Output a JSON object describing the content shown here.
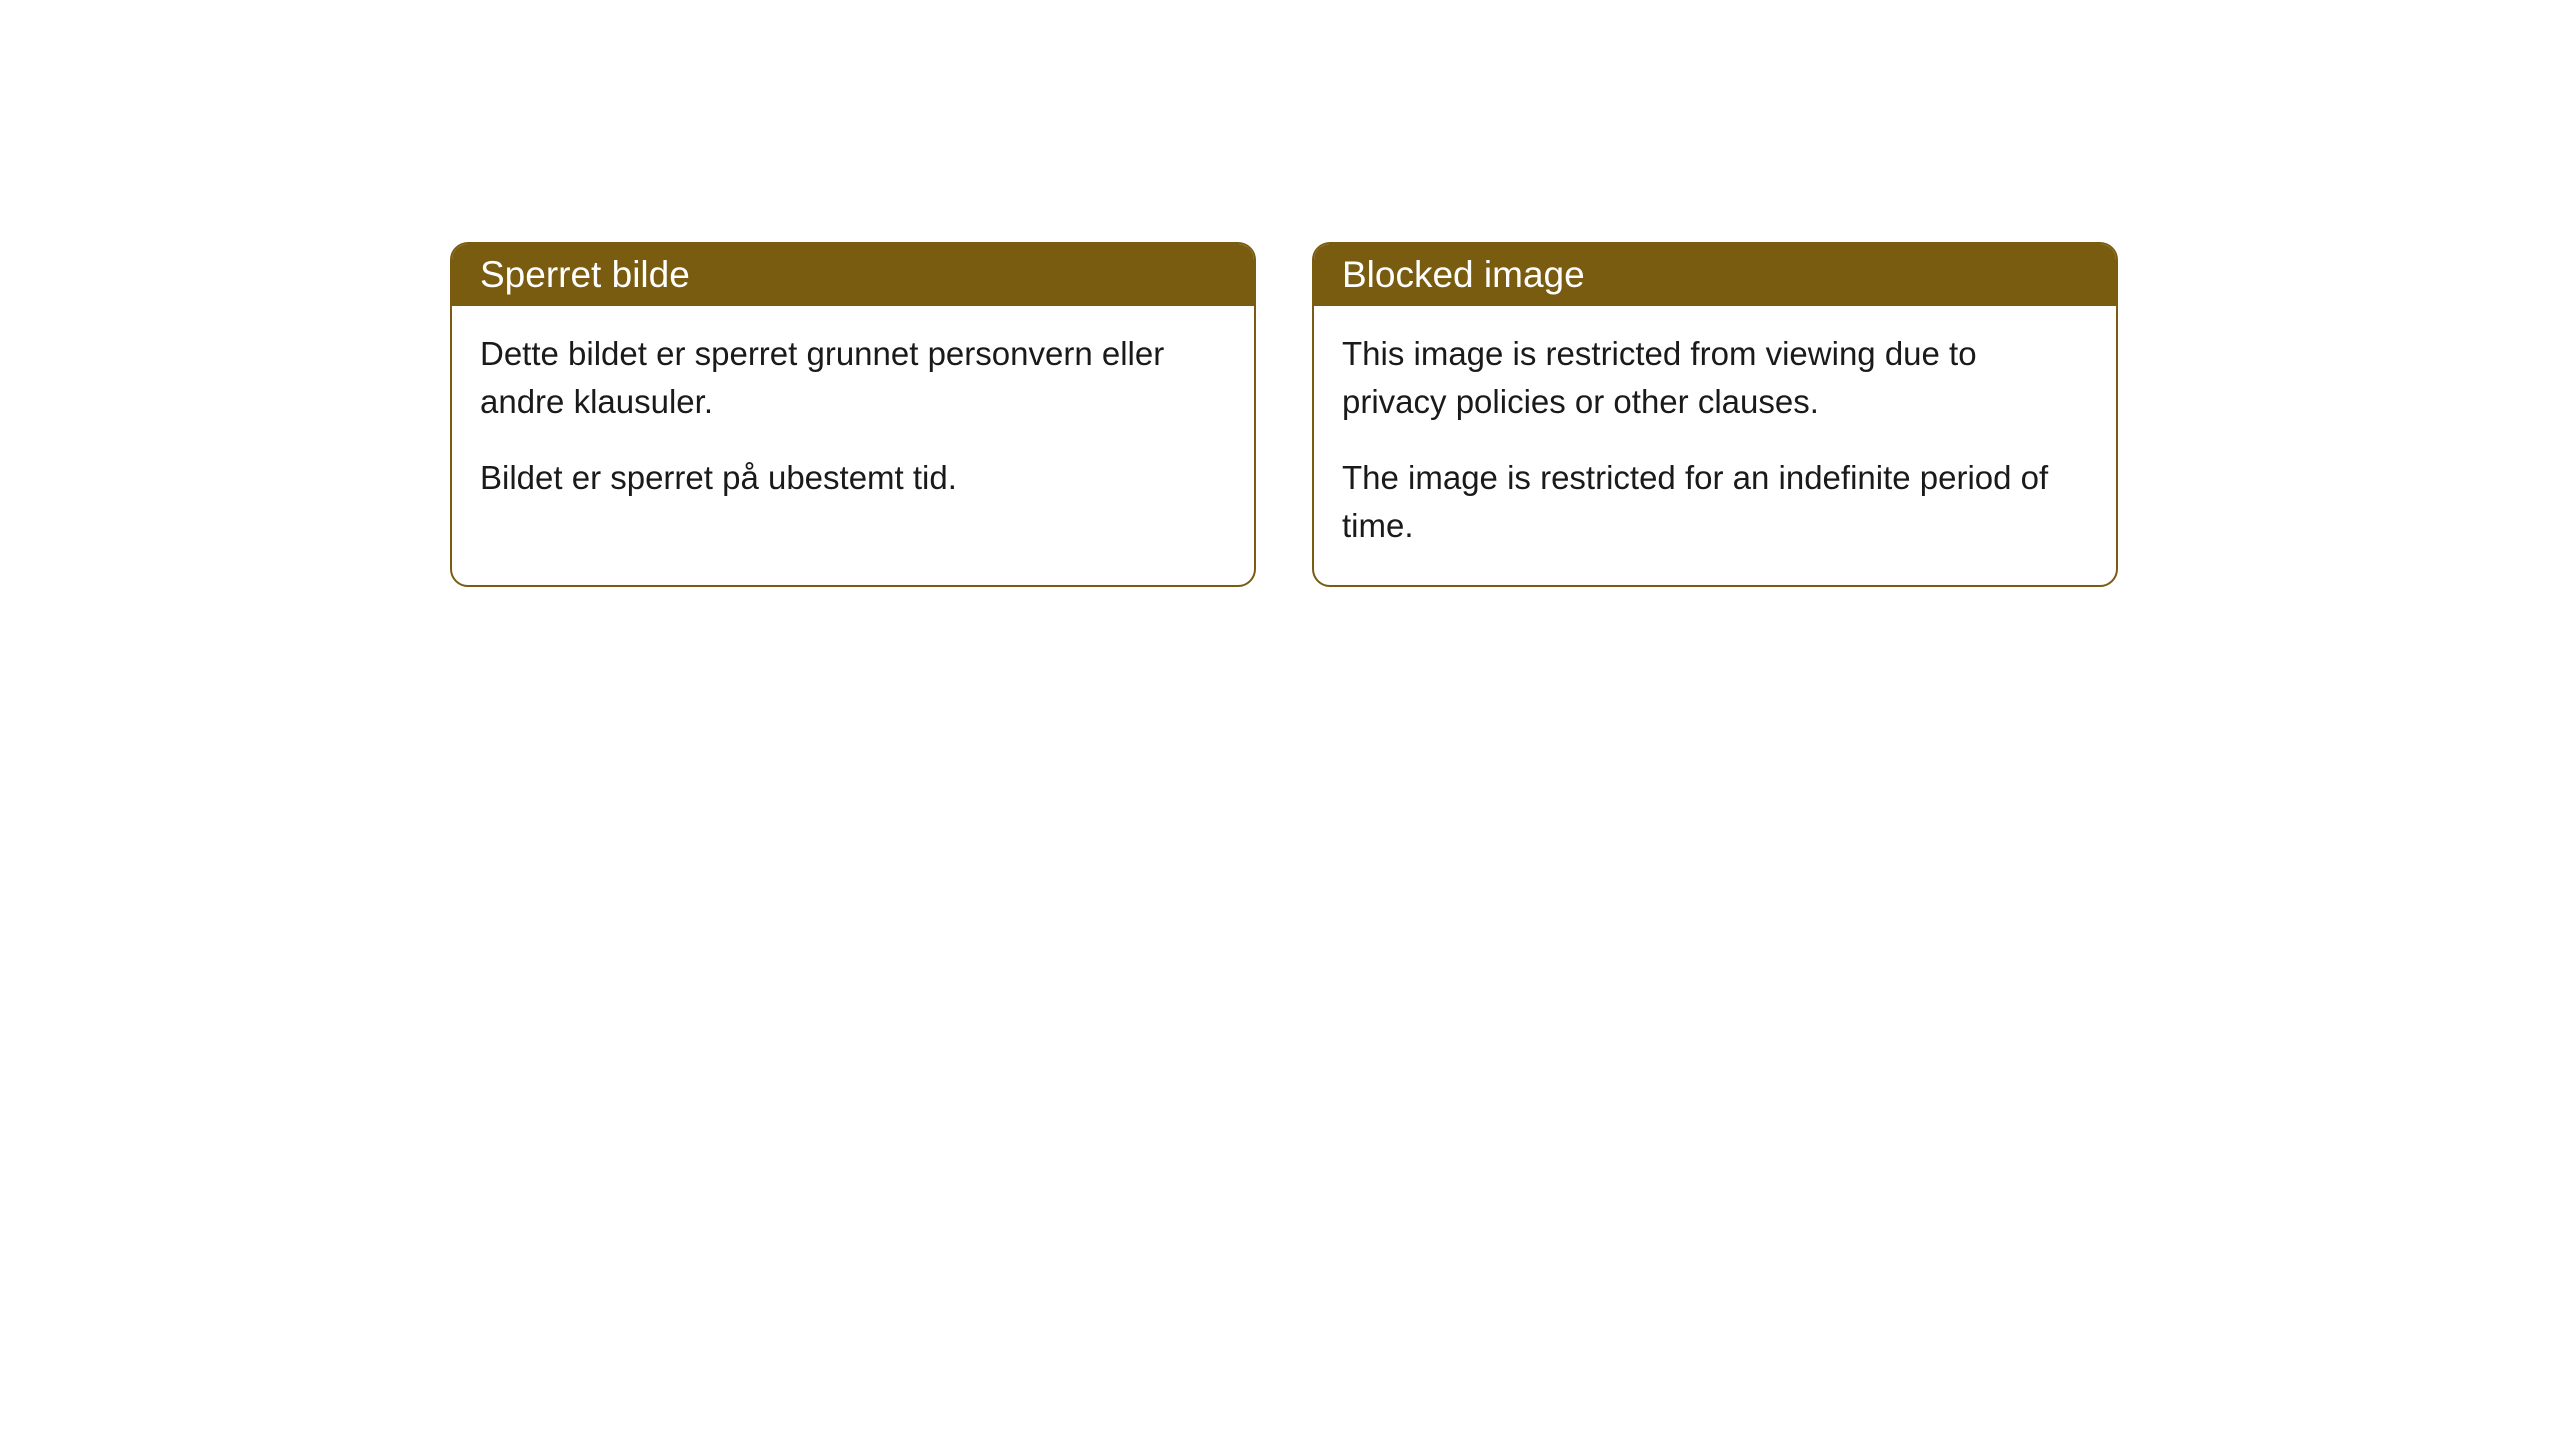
{
  "theme": {
    "header_bg": "#7a5c11",
    "header_text_color": "#ffffff",
    "border_color": "#7a5c11",
    "body_bg": "#ffffff",
    "body_text_color": "#1a1a1a",
    "border_radius": 18,
    "header_fontsize": 37,
    "body_fontsize": 33
  },
  "cards": {
    "norwegian": {
      "title": "Sperret bilde",
      "paragraph1": "Dette bildet er sperret grunnet personvern eller andre klausuler.",
      "paragraph2": "Bildet er sperret på ubestemt tid."
    },
    "english": {
      "title": "Blocked image",
      "paragraph1": "This image is restricted from viewing due to privacy policies or other clauses.",
      "paragraph2": "The image is restricted for an indefinite period of time."
    }
  }
}
